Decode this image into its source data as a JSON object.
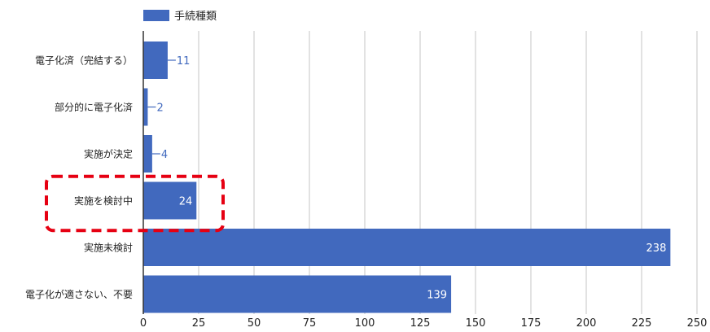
{
  "chart_data": {
    "type": "bar",
    "orientation": "horizontal",
    "categories": [
      "電子化済（完結する）",
      "部分的に電子化済",
      "実施が決定",
      "実施を検討中",
      "実施未検討",
      "電子化が適さない、不要"
    ],
    "series": [
      {
        "name": "手続種類",
        "values": [
          11,
          2,
          4,
          24,
          238,
          139
        ]
      }
    ],
    "xlim": [
      0,
      250
    ],
    "x_ticks": [
      0,
      25,
      50,
      75,
      100,
      125,
      150,
      175,
      200,
      225,
      250
    ],
    "grid": "vertical",
    "legend": "top-left",
    "highlight": {
      "category": "実施を検討中",
      "style": "red-dashed-box"
    },
    "colors": {
      "bar": "#4169be",
      "grid": "#d9d9d9",
      "highlight": "#e60012",
      "label_outside": "#4169be",
      "label_inside": "#ffffff"
    }
  }
}
